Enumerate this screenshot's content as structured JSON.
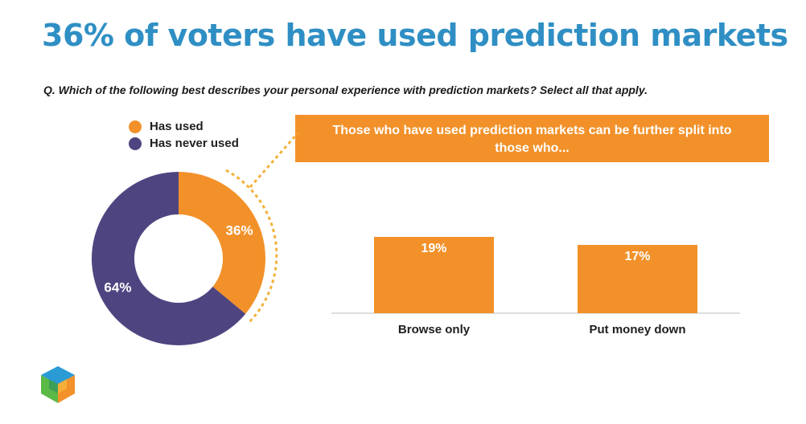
{
  "title": "36% of voters have used prediction markets",
  "question": "Q. Which of the following best describes your personal experience with prediction markets? Select all that apply.",
  "legend": [
    {
      "label": "Has used",
      "color": "#f29129"
    },
    {
      "label": "Has never used",
      "color": "#4e4580"
    }
  ],
  "callout": "Those who have used prediction markets can be further split into those who...",
  "colors": {
    "accent_orange": "#f29129",
    "purple": "#4e4580",
    "title_blue": "#2f8fc4"
  },
  "chart_data": [
    {
      "type": "pie",
      "donut": true,
      "labels": [
        "Has used",
        "Has never used"
      ],
      "values": [
        36,
        64
      ],
      "data_labels": [
        "36%",
        "64%"
      ],
      "colors": [
        "#f29129",
        "#4e4580"
      ]
    },
    {
      "type": "bar",
      "categories": [
        "Browse only",
        "Put money down"
      ],
      "values": [
        19,
        17
      ],
      "data_labels": [
        "19%",
        "17%"
      ],
      "colors": [
        "#f29129",
        "#f29129"
      ]
    }
  ]
}
